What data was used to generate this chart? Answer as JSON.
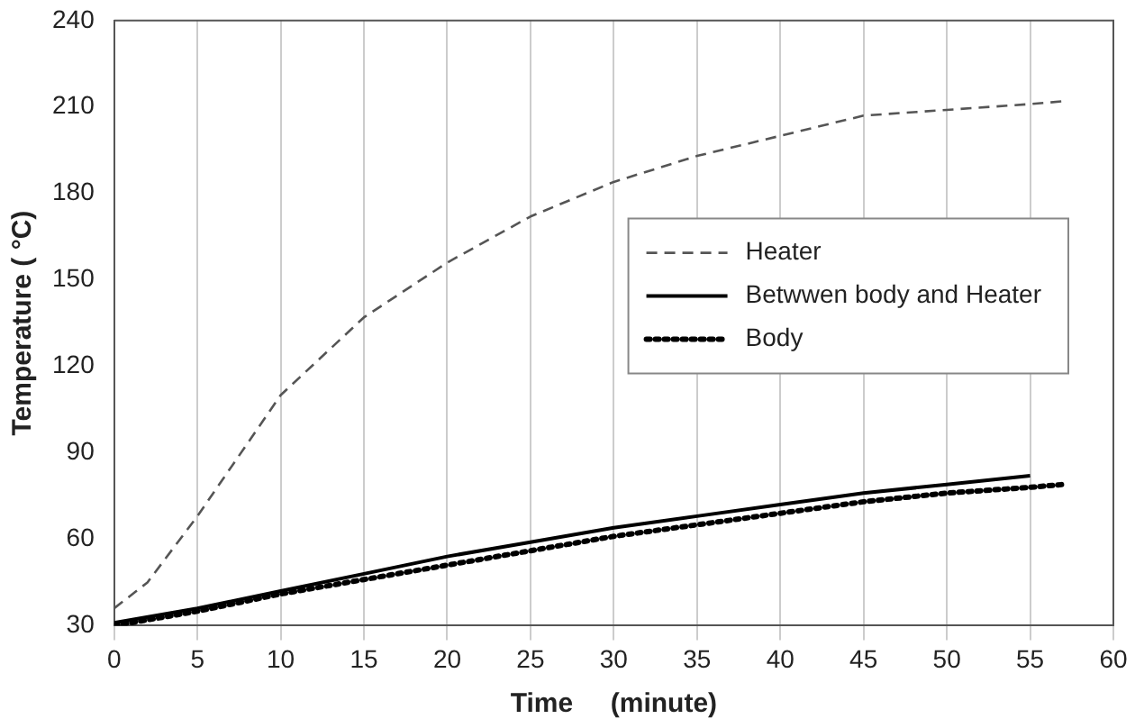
{
  "chart_data": {
    "type": "line",
    "xlabel": "Time     (minute)",
    "ylabel": "Temperature ( °C)",
    "xlim": [
      0,
      60
    ],
    "xticks": [
      0,
      5,
      10,
      15,
      20,
      25,
      30,
      35,
      40,
      45,
      50,
      55,
      60
    ],
    "ylim": [
      30,
      240
    ],
    "yticks": [
      30,
      60,
      90,
      120,
      150,
      180,
      210,
      240
    ],
    "grid": "x",
    "legend": "right",
    "marker": "none",
    "series": [
      {
        "name": "Heater",
        "color": "#555555",
        "line_style": "dashed",
        "x": [
          0,
          2,
          5,
          10,
          15,
          20,
          25,
          30,
          35,
          40,
          45,
          50,
          55,
          57
        ],
        "values": [
          36,
          45,
          68,
          110,
          137,
          156,
          172,
          184,
          193,
          200,
          207,
          209,
          211,
          212
        ]
      },
      {
        "name": "Betwwen body and Heater",
        "color": "#000000",
        "line_style": "solid",
        "x": [
          0,
          5,
          10,
          15,
          20,
          25,
          30,
          35,
          40,
          45,
          50,
          55
        ],
        "values": [
          31,
          36,
          42,
          48,
          54,
          59,
          64,
          68,
          72,
          76,
          79,
          82
        ]
      },
      {
        "name": "Body",
        "color": "#000000",
        "line_style": "dotted",
        "x": [
          0,
          5,
          10,
          15,
          20,
          25,
          30,
          35,
          40,
          45,
          50,
          55,
          57
        ],
        "values": [
          30,
          35,
          41,
          46,
          51,
          56,
          61,
          65,
          69,
          73,
          76,
          78,
          79
        ]
      }
    ]
  }
}
